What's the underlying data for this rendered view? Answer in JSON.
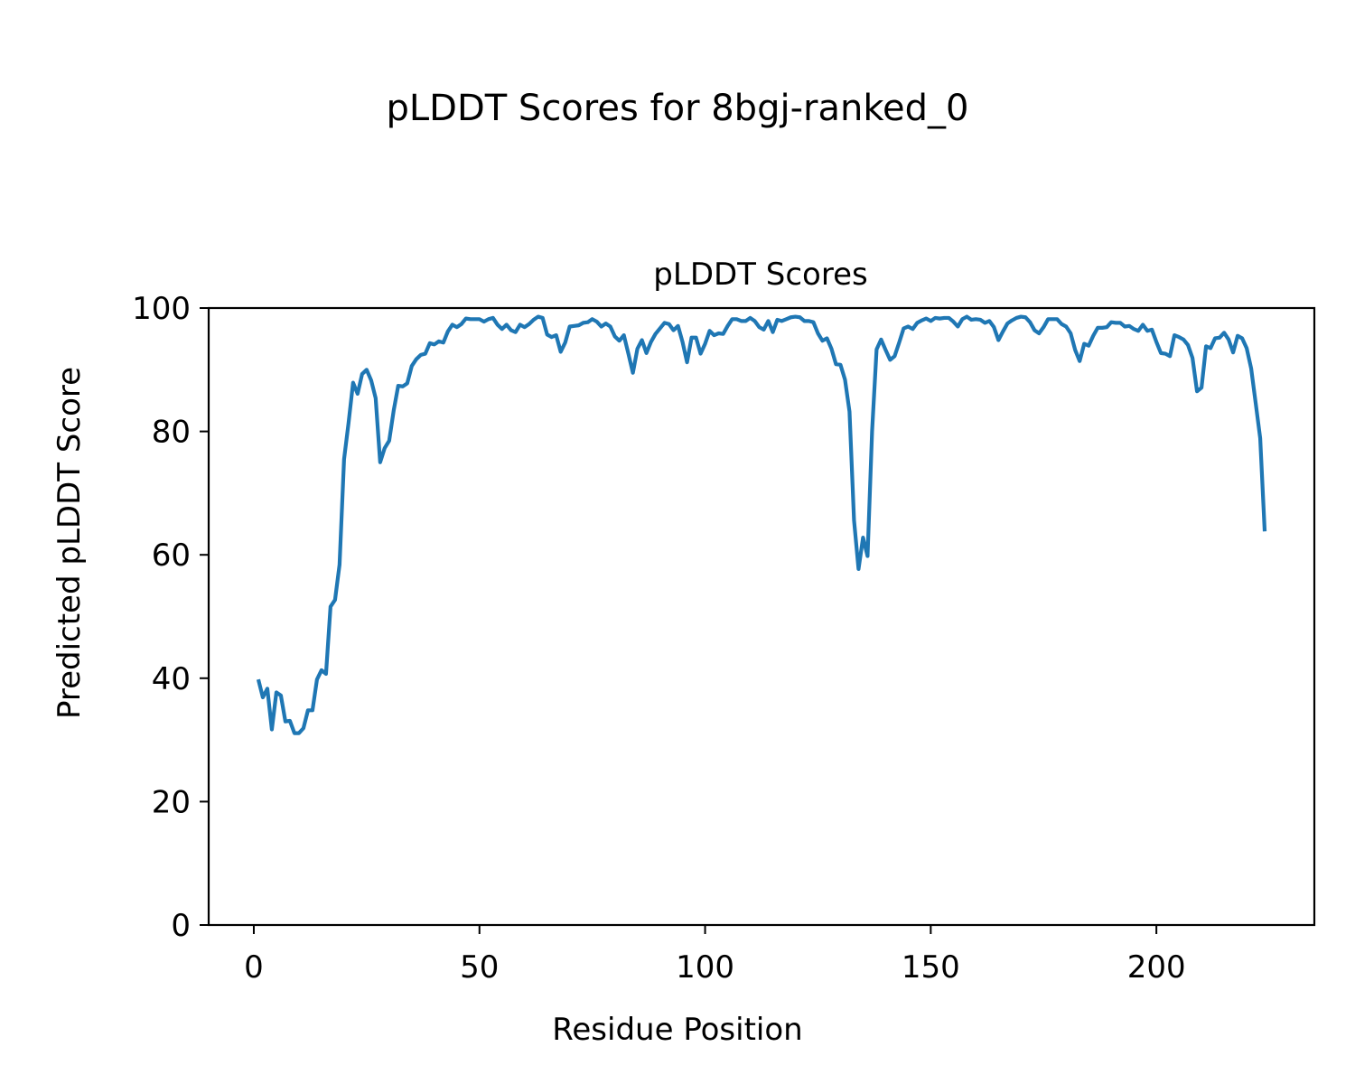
{
  "figure": {
    "suptitle": "pLDDT Scores for 8bgj-ranked_0"
  },
  "chart_data": {
    "type": "line",
    "title": "pLDDT Scores",
    "xlabel": "Residue Position",
    "ylabel": "Predicted pLDDT Score",
    "xlim": [
      -10,
      235
    ],
    "ylim": [
      0,
      100
    ],
    "xticks": [
      0,
      50,
      100,
      150,
      200
    ],
    "yticks": [
      0,
      20,
      40,
      60,
      80,
      100
    ],
    "grid": false,
    "legend": "none",
    "series": [
      {
        "color": "#1f77b4",
        "x_start": 1,
        "values": [
          39.8,
          36.9,
          38.3,
          31.7,
          37.7,
          37.2,
          33.0,
          33.1,
          31.1,
          31.1,
          31.9,
          34.8,
          34.8,
          39.8,
          41.3,
          40.7,
          51.6,
          52.7,
          58.4,
          75.5,
          81.4,
          87.9,
          86.1,
          89.3,
          90.0,
          88.3,
          85.4,
          75.0,
          77.3,
          78.5,
          83.4,
          87.4,
          87.3,
          87.8,
          90.6,
          91.7,
          92.4,
          92.6,
          94.3,
          94.1,
          94.6,
          94.4,
          96.2,
          97.3,
          96.9,
          97.4,
          98.3,
          98.2,
          98.2,
          98.2,
          97.8,
          98.2,
          98.4,
          97.3,
          96.6,
          97.3,
          96.4,
          96.1,
          97.3,
          96.9,
          97.4,
          98.1,
          98.6,
          98.4,
          95.7,
          95.3,
          95.6,
          92.9,
          94.4,
          97.0,
          97.1,
          97.2,
          97.6,
          97.7,
          98.2,
          97.8,
          97.0,
          97.5,
          97.0,
          95.4,
          94.7,
          95.6,
          92.6,
          89.5,
          93.4,
          94.8,
          92.7,
          94.5,
          95.8,
          96.7,
          97.6,
          97.4,
          96.4,
          97.1,
          94.5,
          91.2,
          95.2,
          95.2,
          92.6,
          94.2,
          96.3,
          95.6,
          95.9,
          95.8,
          97.1,
          98.2,
          98.2,
          97.9,
          97.9,
          98.4,
          97.9,
          96.9,
          96.5,
          97.9,
          96.1,
          98.1,
          97.9,
          98.2,
          98.5,
          98.6,
          98.5,
          97.9,
          97.9,
          97.7,
          95.9,
          94.7,
          95.1,
          93.4,
          90.9,
          90.8,
          88.4,
          83.2,
          65.6,
          57.7,
          62.8,
          59.8,
          80.0,
          93.3,
          94.9,
          93.2,
          91.6,
          92.2,
          94.4,
          96.7,
          97.0,
          96.6,
          97.6,
          98.0,
          98.3,
          97.9,
          98.4,
          98.3,
          98.4,
          98.4,
          97.8,
          97.0,
          98.2,
          98.6,
          98.1,
          98.2,
          98.1,
          97.6,
          97.9,
          96.9,
          94.8,
          96.2,
          97.5,
          98.0,
          98.4,
          98.6,
          98.5,
          97.7,
          96.4,
          95.9,
          96.9,
          98.2,
          98.2,
          98.2,
          97.4,
          97.0,
          95.9,
          93.2,
          91.4,
          94.2,
          93.9,
          95.5,
          96.8,
          96.8,
          96.9,
          97.7,
          97.6,
          97.6,
          97.0,
          97.1,
          96.6,
          96.3,
          97.3,
          96.3,
          96.5,
          94.5,
          92.7,
          92.6,
          92.2,
          95.6,
          95.3,
          94.9,
          94.0,
          91.9,
          86.5,
          87.1,
          93.8,
          93.5,
          95.1,
          95.2,
          96.0,
          94.9,
          92.8,
          95.5,
          95.1,
          93.5,
          90.2,
          84.6,
          78.9,
          63.8
        ]
      }
    ]
  }
}
